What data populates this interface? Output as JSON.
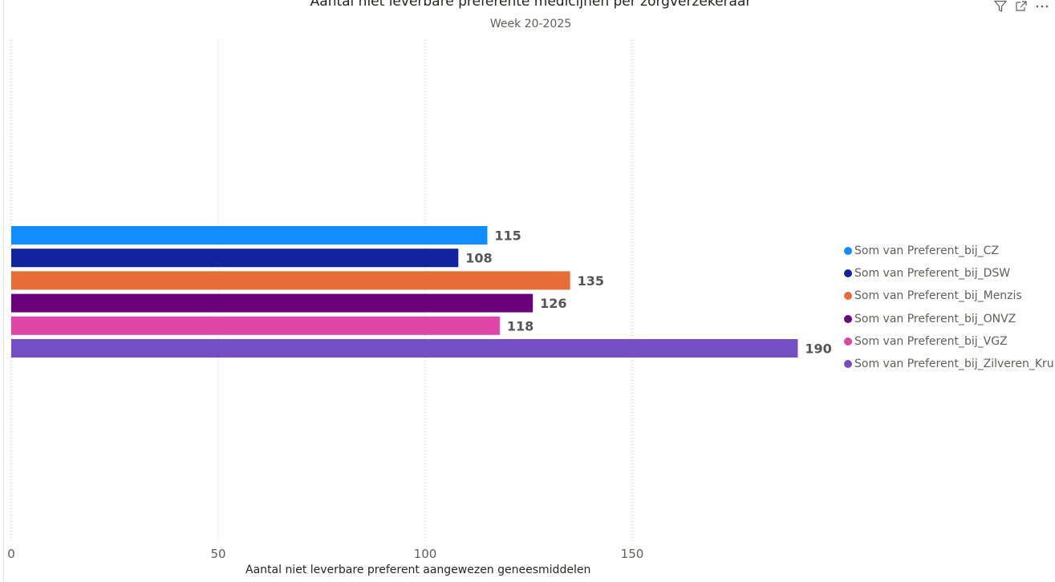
{
  "chart_data": {
    "type": "bar",
    "orientation": "horizontal",
    "title": "Aantal niet leverbare preferente medicijnen per zorgverzekeraar",
    "subtitle": "Week 20-2025",
    "xlabel": "Aantal niet leverbare preferent aangewezen geneesmiddelen",
    "ylabel": "",
    "xlim": [
      0,
      190
    ],
    "x_ticks": [
      0,
      50,
      100,
      150
    ],
    "grid": true,
    "legend_position": "right",
    "series": [
      {
        "name": "Som van Preferent_bij_CZ",
        "value": 115,
        "color": "#118DFF"
      },
      {
        "name": "Som van Preferent_bij_DSW",
        "value": 108,
        "color": "#12239E"
      },
      {
        "name": "Som van Preferent_bij_Menzis",
        "value": 135,
        "color": "#E66C37"
      },
      {
        "name": "Som van Preferent_bij_ONVZ",
        "value": 126,
        "color": "#6B007B"
      },
      {
        "name": "Som van Preferent_bij_VGZ",
        "value": 118,
        "color": "#E044A7"
      },
      {
        "name": "Som van Preferent_bij_Zilveren_Kruis",
        "value": 190,
        "color": "#744EC2"
      }
    ]
  },
  "toolbar": {
    "icons": [
      "filter-icon",
      "focus-mode-icon",
      "more-options-icon"
    ]
  }
}
